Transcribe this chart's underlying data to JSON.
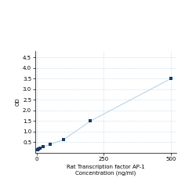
{
  "x_values": [
    0,
    3.125,
    6.25,
    12.5,
    25,
    50,
    100,
    200,
    500
  ],
  "y_values": [
    0.13,
    0.16,
    0.19,
    0.23,
    0.28,
    0.4,
    0.62,
    1.5,
    3.5
  ],
  "xlabel_line1": "Rat Transcription factor AP-1",
  "xlabel_line2": "Concentration (ng/ml)",
  "ylabel": "OD",
  "xlim": [
    -5,
    520
  ],
  "ylim": [
    0,
    4.8
  ],
  "yticks": [
    0.5,
    1.0,
    1.5,
    2.0,
    2.5,
    3.0,
    3.5,
    4.0,
    4.5
  ],
  "xticks": [
    0,
    250,
    500
  ],
  "line_color": "#b8d4e8",
  "marker_color": "#1b3a6b",
  "bg_color": "#ffffff",
  "grid_color": "#c8dce8",
  "figure_bg": "#ffffff",
  "label_fontsize": 5.0,
  "tick_fontsize": 5.0,
  "marker_size": 8,
  "linewidth": 0.8
}
